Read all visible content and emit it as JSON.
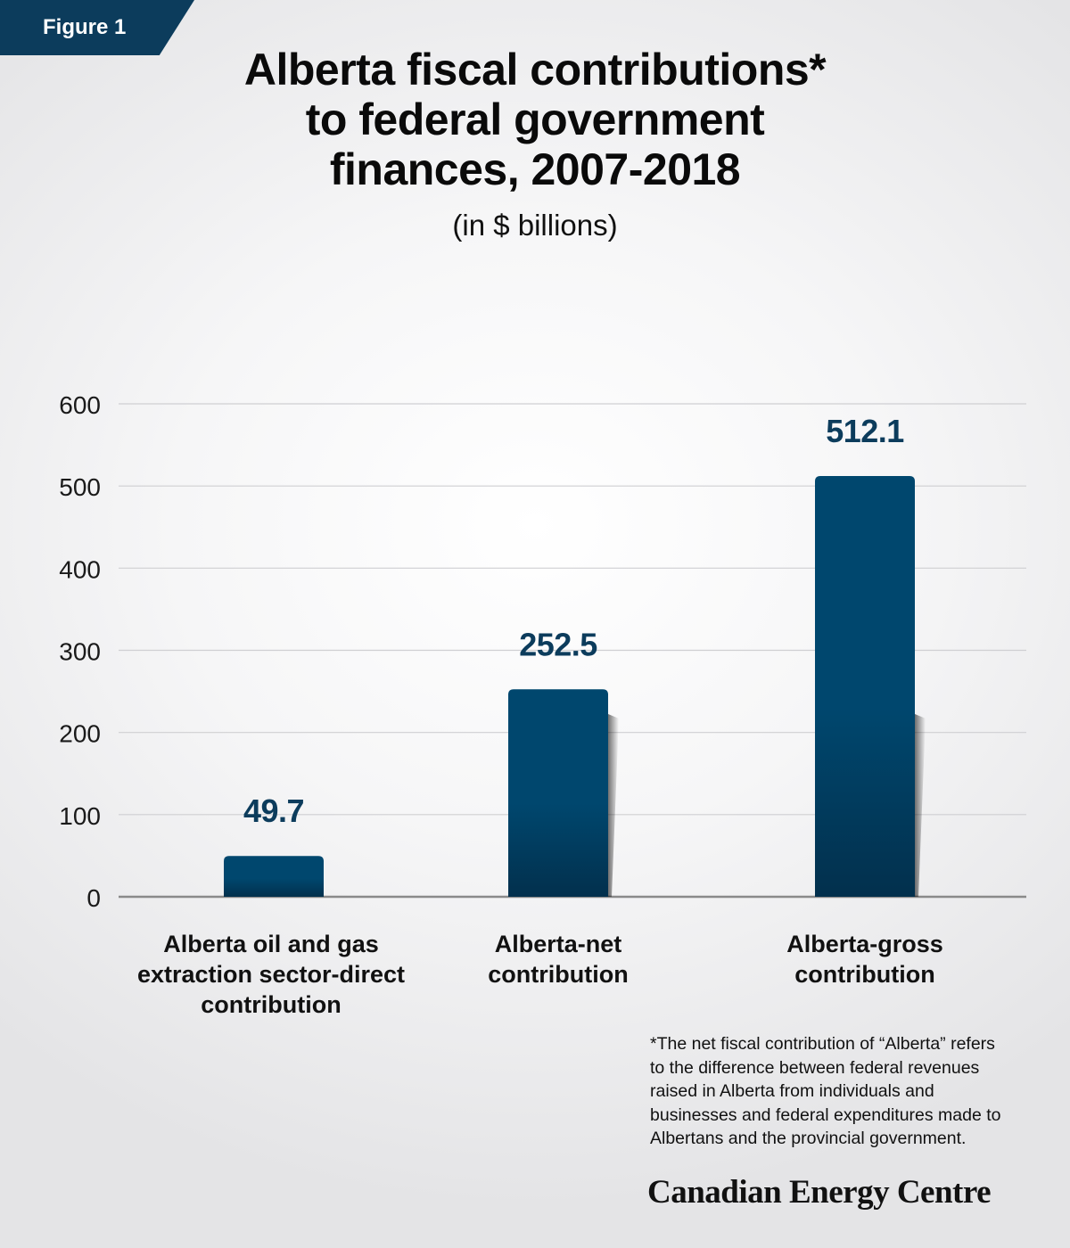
{
  "figure_label": "Figure 1",
  "title_lines": [
    "Alberta fiscal contributions*",
    "to federal government",
    "finances, 2007-2018"
  ],
  "subtitle": "(in $ billions)",
  "chart_data": {
    "type": "bar",
    "title": "Alberta fiscal contributions* to federal government finances, 2007-2018",
    "subtitle": "(in $ billions)",
    "categories": [
      [
        "Alberta oil and gas",
        "extraction sector-direct",
        "contribution"
      ],
      [
        "Alberta-net",
        "contribution"
      ],
      [
        "Alberta-gross",
        "contribution"
      ]
    ],
    "values": [
      49.7,
      252.5,
      512.1
    ],
    "data_labels": [
      "49.7",
      "252.5",
      "512.1"
    ],
    "yticks": [
      0,
      100,
      200,
      300,
      400,
      500,
      600
    ],
    "ylim": [
      0,
      600
    ],
    "grid": true,
    "xlabel": "",
    "ylabel": "",
    "bar_color": "#00476e",
    "bar_color_bottom": "#02304d",
    "label_color": "#0c3c5c"
  },
  "footnote_lines": [
    "*The net fiscal contribution of “Alberta” refers",
    "to the difference between federal revenues",
    "raised in Alberta from individuals and",
    "businesses and federal expenditures made to",
    "Albertans and the provincial government."
  ],
  "brand": "Canadian Energy Centre"
}
